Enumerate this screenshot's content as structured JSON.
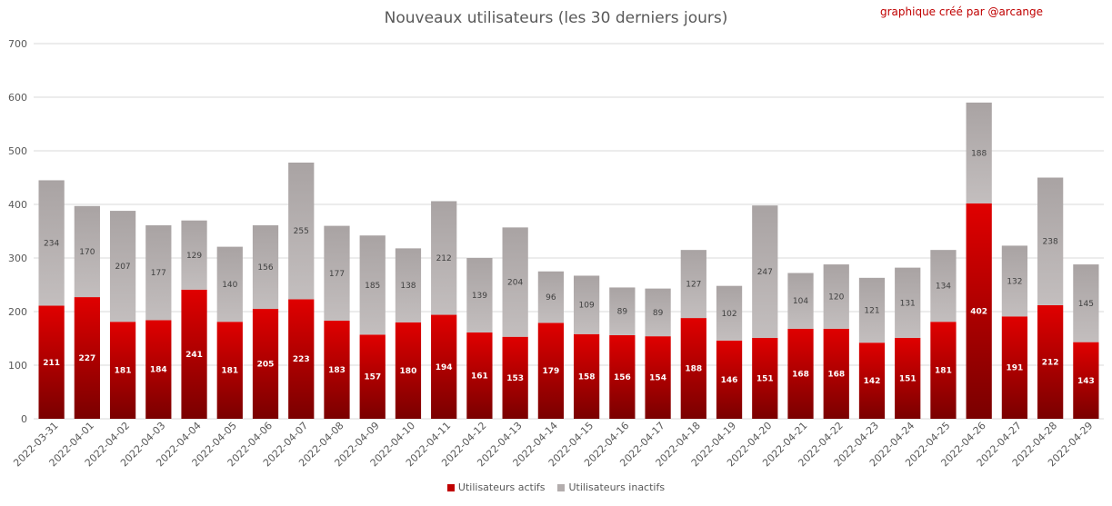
{
  "chart_data": {
    "type": "bar",
    "stacked": true,
    "title": "Nouveaux utilisateurs  (les 30 derniers  jours)",
    "annotation": "graphique créé par @arcange",
    "categories": [
      "2022-03-31",
      "2022-04-01",
      "2022-04-02",
      "2022-04-03",
      "2022-04-04",
      "2022-04-05",
      "2022-04-06",
      "2022-04-07",
      "2022-04-08",
      "2022-04-09",
      "2022-04-10",
      "2022-04-11",
      "2022-04-12",
      "2022-04-13",
      "2022-04-14",
      "2022-04-15",
      "2022-04-16",
      "2022-04-17",
      "2022-04-18",
      "2022-04-19",
      "2022-04-20",
      "2022-04-21",
      "2022-04-22",
      "2022-04-23",
      "2022-04-24",
      "2022-04-25",
      "2022-04-26",
      "2022-04-27",
      "2022-04-28",
      "2022-04-29"
    ],
    "series": [
      {
        "name": "Utilisateurs actifs",
        "color": "#c00000",
        "values": [
          211,
          227,
          181,
          184,
          241,
          181,
          205,
          223,
          183,
          157,
          180,
          194,
          161,
          153,
          179,
          158,
          156,
          154,
          188,
          146,
          151,
          168,
          168,
          142,
          151,
          181,
          402,
          191,
          212,
          143
        ]
      },
      {
        "name": "Utilisateurs inactifs",
        "color": "#b3adad",
        "values": [
          234,
          170,
          207,
          177,
          129,
          140,
          156,
          255,
          177,
          185,
          138,
          212,
          139,
          204,
          96,
          109,
          89,
          89,
          127,
          102,
          247,
          104,
          120,
          121,
          131,
          134,
          188,
          132,
          238,
          145
        ]
      }
    ],
    "ylim": [
      0,
      700
    ],
    "yticks": [
      0,
      100,
      200,
      300,
      400,
      500,
      600,
      700
    ],
    "grid": true,
    "legend_position": "bottom"
  }
}
